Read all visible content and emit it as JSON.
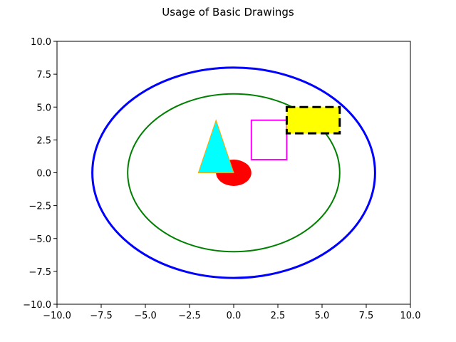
{
  "chart_data": {
    "type": "scatter",
    "title": "Usage of Basic Drawings",
    "xlabel": "",
    "ylabel": "",
    "xlim": [
      -10,
      10
    ],
    "ylim": [
      -10,
      10
    ],
    "grid": false,
    "xticks": [
      -10,
      -7.5,
      -5,
      -2.5,
      0,
      2.5,
      5,
      7.5,
      10
    ],
    "yticks": [
      -10,
      -7.5,
      -5,
      -2.5,
      0,
      2.5,
      5,
      7.5,
      10
    ],
    "xtick_labels": [
      "−10.0",
      "−7.5",
      "−5.0",
      "−2.5",
      "0.0",
      "2.5",
      "5.0",
      "7.5",
      "10.0"
    ],
    "ytick_labels": [
      "−10.0",
      "−7.5",
      "−5.0",
      "−2.5",
      "0.0",
      "2.5",
      "5.0",
      "7.5",
      "10.0"
    ],
    "shapes": [
      {
        "kind": "circle",
        "center": [
          0,
          0
        ],
        "radius": 8,
        "fill": "none",
        "stroke": "#0000ff",
        "linestyle": "solid"
      },
      {
        "kind": "circle",
        "center": [
          0,
          0
        ],
        "radius": 6,
        "fill": "none",
        "stroke": "#008000",
        "linestyle": "solid"
      },
      {
        "kind": "ellipse",
        "center": [
          0,
          0
        ],
        "width": 2,
        "height": 2,
        "fill": "#ff0000",
        "stroke": "none"
      },
      {
        "kind": "polygon",
        "points": [
          [
            -2,
            0
          ],
          [
            0,
            0
          ],
          [
            -1,
            4
          ]
        ],
        "fill": "#00ffff",
        "stroke": "#ffa500"
      },
      {
        "kind": "rectangle",
        "origin": [
          1,
          1
        ],
        "width": 2,
        "height": 3,
        "fill": "none",
        "stroke": "#ff00ff",
        "linestyle": "solid"
      },
      {
        "kind": "rectangle",
        "origin": [
          3,
          3
        ],
        "width": 3,
        "height": 2,
        "fill": "#ffff00",
        "stroke": "#000000",
        "linestyle": "dashed"
      }
    ]
  }
}
